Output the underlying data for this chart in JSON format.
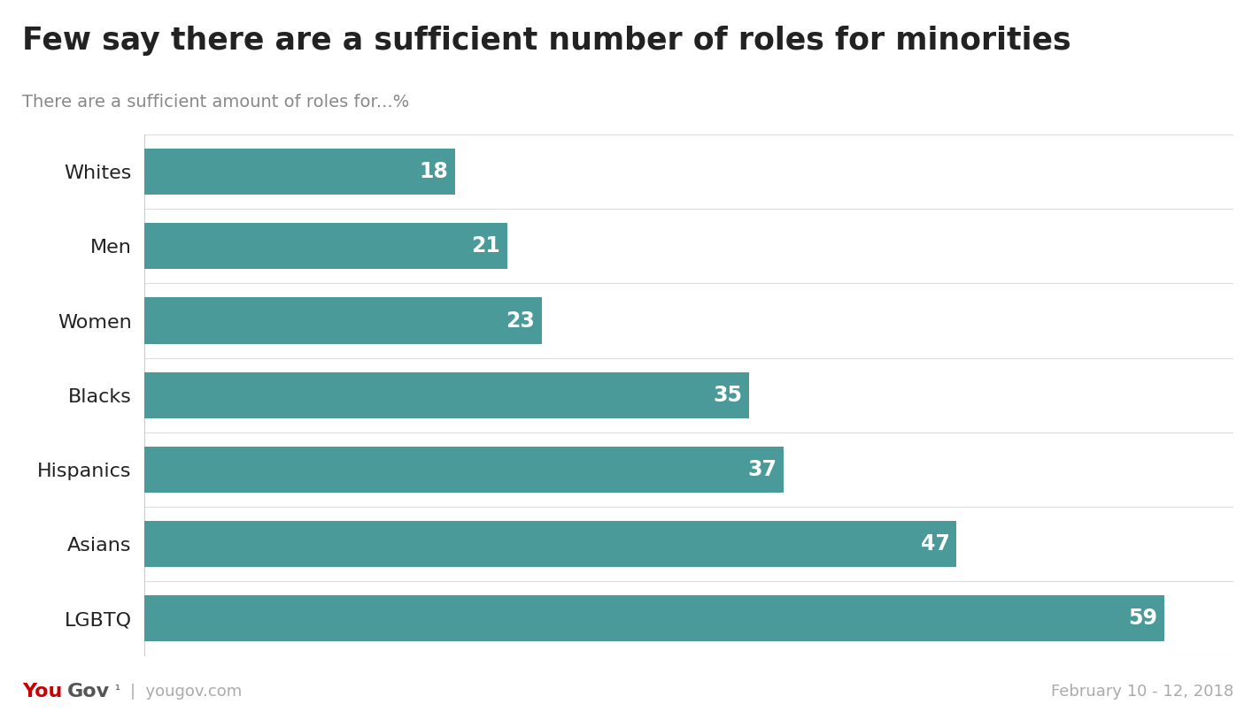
{
  "title": "Few say there are a sufficient number of roles for minorities",
  "subtitle": "There are a sufficient amount of roles for...%",
  "categories": [
    "Whites",
    "Men",
    "Women",
    "Blacks",
    "Hispanics",
    "Asians",
    "LGBTQ"
  ],
  "values": [
    59,
    47,
    37,
    35,
    23,
    21,
    18
  ],
  "bar_color": "#4a9a9a",
  "label_color": "#ffffff",
  "title_color": "#222222",
  "subtitle_color": "#888888",
  "header_bg": "#e8e8e8",
  "plot_bg": "#ffffff",
  "footer_bg": "#ffffff",
  "outer_bg": "#ffffff",
  "you_color": "#cc0000",
  "gov_color": "#555555",
  "footer_text_color": "#aaaaaa",
  "footer_right": "February 10 - 12, 2018",
  "xlim": [
    0,
    63
  ],
  "bar_height": 0.62,
  "title_fontsize": 25,
  "subtitle_fontsize": 14,
  "label_fontsize": 17,
  "category_fontsize": 16,
  "footer_fontsize": 13
}
